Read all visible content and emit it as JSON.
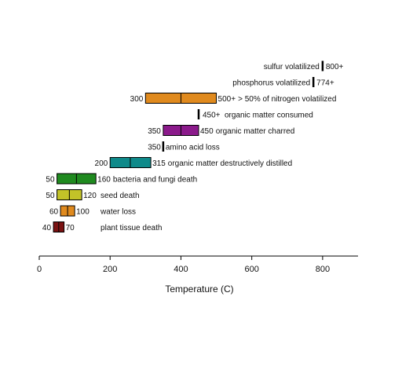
{
  "chart_data": {
    "type": "bar",
    "subtype": "floating-range",
    "xlabel": "Temperature (C)",
    "xlim": [
      0,
      900
    ],
    "xticks": [
      0,
      200,
      400,
      600,
      800
    ],
    "grid": false,
    "legend": "none",
    "events": [
      {
        "event": "sulfur volatilized",
        "marker": 800,
        "marker_label": "800+",
        "color": "#000000"
      },
      {
        "event": "phosphorus volatilized",
        "marker": 774,
        "marker_label": "774+",
        "color": "#000000"
      },
      {
        "event": "> 50% of nitrogen volatilized",
        "start": 300,
        "end": 500,
        "mid": 400,
        "start_label": "300",
        "end_label": "500+",
        "color": "#e08a1e"
      },
      {
        "event": "organic matter consumed",
        "marker": 450,
        "marker_label": "450+",
        "color": "#000000"
      },
      {
        "event": "organic matter charred",
        "start": 350,
        "end": 450,
        "mid": 400,
        "start_label": "350",
        "end_label": "450",
        "color": "#8b1a8b"
      },
      {
        "event": "amino acid loss",
        "marker": 350,
        "marker_label": "350",
        "color": "#000000"
      },
      {
        "event": "organic matter destructively distilled",
        "start": 200,
        "end": 315,
        "mid": 257,
        "start_label": "200",
        "end_label": "315",
        "color": "#0e8a8a"
      },
      {
        "event": "bacteria and fungi death",
        "start": 50,
        "end": 160,
        "mid": 105,
        "start_label": "50",
        "end_label": "160",
        "color": "#1f8a1f"
      },
      {
        "event": "seed death",
        "start": 50,
        "end": 120,
        "mid": 85,
        "start_label": "50",
        "end_label": "120",
        "color": "#c3c328"
      },
      {
        "event": "water loss",
        "start": 60,
        "end": 100,
        "mid": 80,
        "start_label": "60",
        "end_label": "100",
        "color": "#e08a1e"
      },
      {
        "event": "plant tissue death",
        "start": 40,
        "end": 70,
        "mid": 55,
        "start_label": "40",
        "end_label": "70",
        "color": "#7a1212"
      }
    ]
  }
}
